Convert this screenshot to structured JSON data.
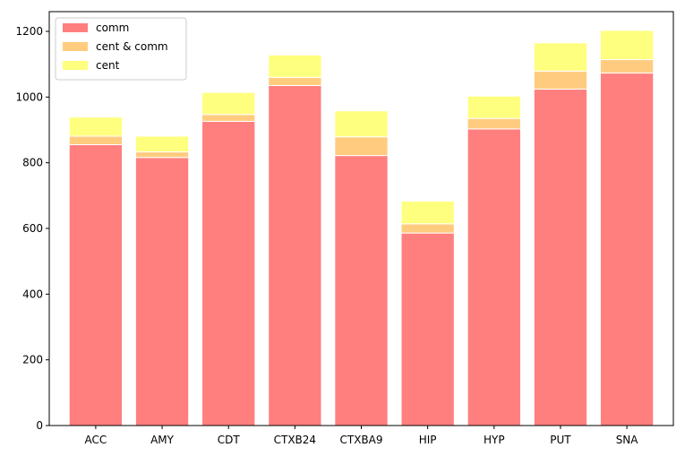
{
  "chart_data": {
    "type": "bar",
    "stacked": true,
    "categories": [
      "ACC",
      "AMY",
      "CDT",
      "CTXB24",
      "CTXBA9",
      "HIP",
      "HYP",
      "PUT",
      "SNA"
    ],
    "series": [
      {
        "name": "comm",
        "color": "#ff7f7f",
        "values": [
          855,
          816,
          926,
          1035,
          822,
          586,
          903,
          1024,
          1073
        ]
      },
      {
        "name": "cent & comm",
        "color": "#ffcc7f",
        "values": [
          26,
          17,
          21,
          25,
          57,
          28,
          32,
          55,
          41
        ]
      },
      {
        "name": "cent",
        "color": "#ffff7f",
        "values": [
          58,
          48,
          67,
          68,
          79,
          69,
          68,
          86,
          89
        ]
      }
    ],
    "title": "",
    "xlabel": "",
    "ylabel": "",
    "ylim": [
      0,
      1260
    ],
    "yticks": [
      0,
      200,
      400,
      600,
      800,
      1000,
      1200
    ],
    "grid": false,
    "legend_position": "top-left"
  }
}
